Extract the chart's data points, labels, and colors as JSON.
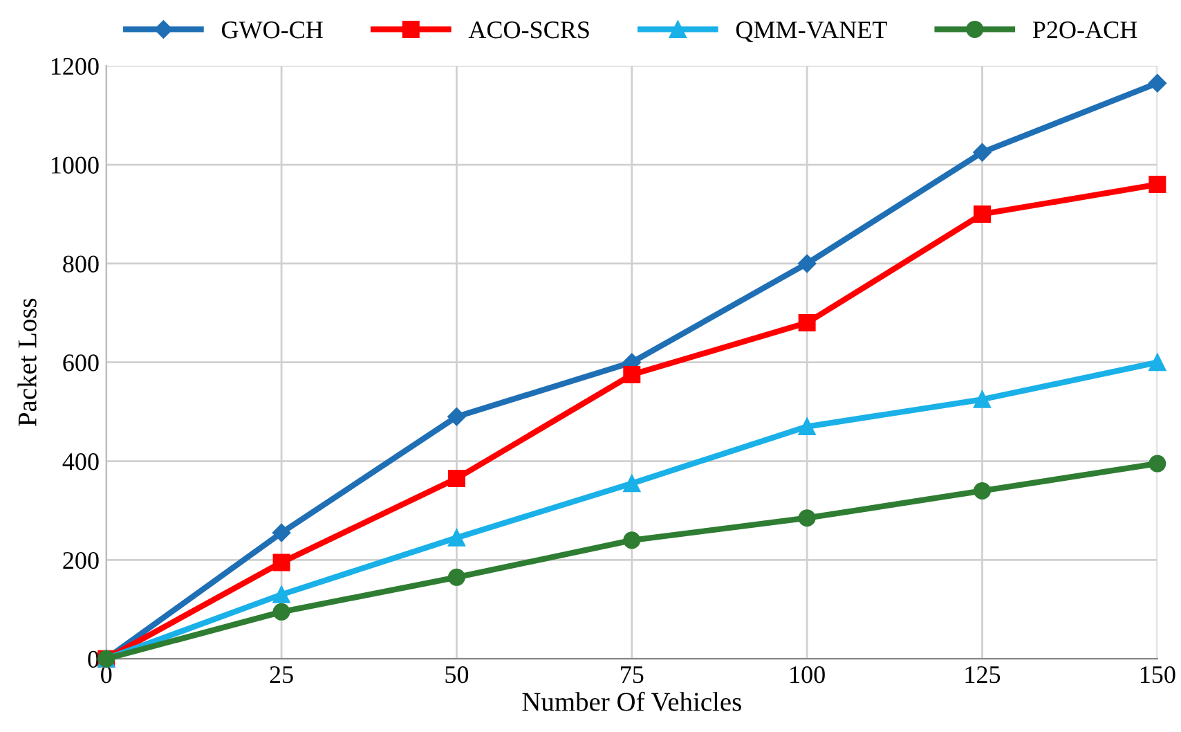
{
  "chart_data": {
    "type": "line",
    "xlabel": "Number Of Vehicles",
    "ylabel": "Packet Loss",
    "x": [
      0,
      25,
      50,
      75,
      100,
      125,
      150
    ],
    "series": [
      {
        "name": "GWO-CH",
        "color": "#1f6fb5",
        "marker": "diamond",
        "values": [
          0,
          255,
          490,
          600,
          800,
          1025,
          1165
        ]
      },
      {
        "name": "ACO-SCRS",
        "color": "#ff0000",
        "marker": "square",
        "values": [
          0,
          195,
          365,
          575,
          680,
          900,
          960
        ]
      },
      {
        "name": "QMM-VANET",
        "color": "#1ab0e8",
        "marker": "triangle",
        "values": [
          0,
          130,
          245,
          355,
          470,
          525,
          600
        ]
      },
      {
        "name": "P2O-ACH",
        "color": "#2e7d32",
        "marker": "circle",
        "values": [
          0,
          95,
          165,
          240,
          285,
          340,
          395
        ]
      }
    ],
    "xlim": [
      0,
      150
    ],
    "xticks": [
      0,
      25,
      50,
      75,
      100,
      125,
      150
    ],
    "ylim": [
      0,
      1200
    ],
    "yticks": [
      0,
      200,
      400,
      600,
      800,
      1000,
      1200
    ],
    "grid": true,
    "legend": "top",
    "line_style": "solid"
  }
}
